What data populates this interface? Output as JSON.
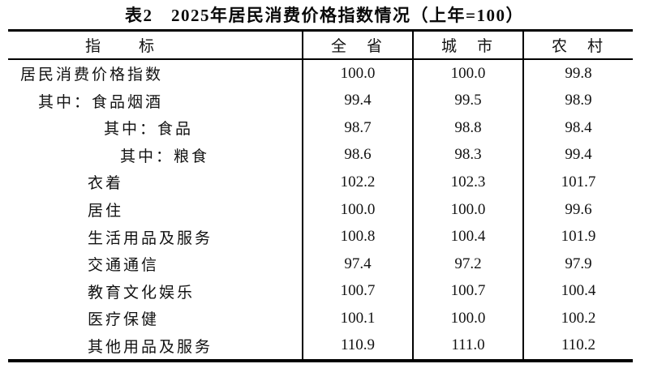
{
  "table": {
    "title": "表2　2025年居民消费价格指数情况（上年=100）",
    "columns": [
      "指　　标",
      "全　省",
      "城　市",
      "农　村"
    ],
    "rows": [
      {
        "label": "居民消费价格指数",
        "indent": 0,
        "values": [
          "100.0",
          "100.0",
          "99.8"
        ]
      },
      {
        "label": "其中：食品烟酒",
        "indent": 1,
        "values": [
          "99.4",
          "99.5",
          "98.9"
        ]
      },
      {
        "label": "其中：食品",
        "indent": 3,
        "values": [
          "98.7",
          "98.8",
          "98.4"
        ]
      },
      {
        "label": "其中：粮食",
        "indent": 4,
        "values": [
          "98.6",
          "98.3",
          "99.4"
        ]
      },
      {
        "label": "衣着",
        "indent": 2,
        "values": [
          "102.2",
          "102.3",
          "101.7"
        ]
      },
      {
        "label": "居住",
        "indent": 2,
        "values": [
          "100.0",
          "100.0",
          "99.6"
        ]
      },
      {
        "label": "生活用品及服务",
        "indent": 2,
        "values": [
          "100.8",
          "100.4",
          "101.9"
        ]
      },
      {
        "label": "交通通信",
        "indent": 2,
        "values": [
          "97.4",
          "97.2",
          "97.9"
        ]
      },
      {
        "label": "教育文化娱乐",
        "indent": 2,
        "values": [
          "100.7",
          "100.7",
          "100.4"
        ]
      },
      {
        "label": "医疗保健",
        "indent": 2,
        "values": [
          "100.1",
          "100.0",
          "100.2"
        ]
      },
      {
        "label": "其他用品及服务",
        "indent": 2,
        "values": [
          "110.9",
          "111.0",
          "110.2"
        ]
      }
    ]
  }
}
